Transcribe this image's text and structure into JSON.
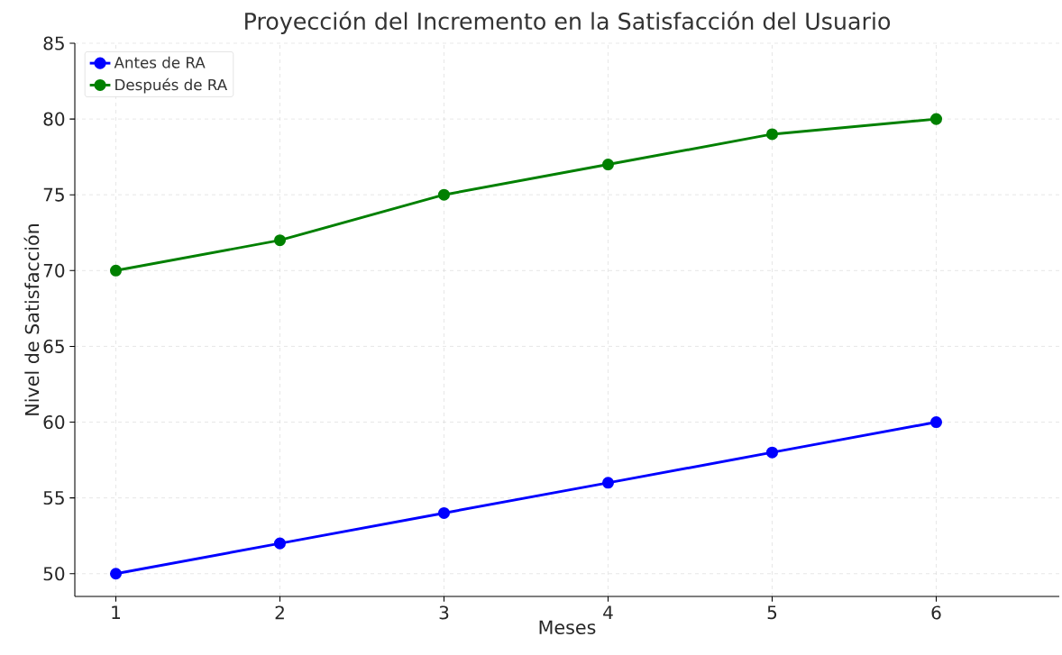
{
  "chart_data": {
    "type": "line",
    "title": "Proyección del Incremento en la Satisfacción del Usuario",
    "xlabel": "Meses",
    "ylabel": "Nivel de Satisfacción",
    "x": [
      1,
      2,
      3,
      4,
      5,
      6
    ],
    "series": [
      {
        "name": "Antes de RA",
        "color": "#0000ff",
        "values": [
          50,
          52,
          54,
          56,
          58,
          60
        ]
      },
      {
        "name": "Después de RA",
        "color": "#008000",
        "values": [
          70,
          72,
          75,
          77,
          79,
          80
        ]
      }
    ],
    "xlim": [
      0.75,
      6.75
    ],
    "ylim": [
      48.5,
      85
    ],
    "xticks": [
      1,
      2,
      3,
      4,
      5,
      6
    ],
    "yticks": [
      50,
      55,
      60,
      65,
      70,
      75,
      80,
      85
    ],
    "grid": true,
    "legend": "top left",
    "marker": "circle",
    "line_style": "solid"
  }
}
